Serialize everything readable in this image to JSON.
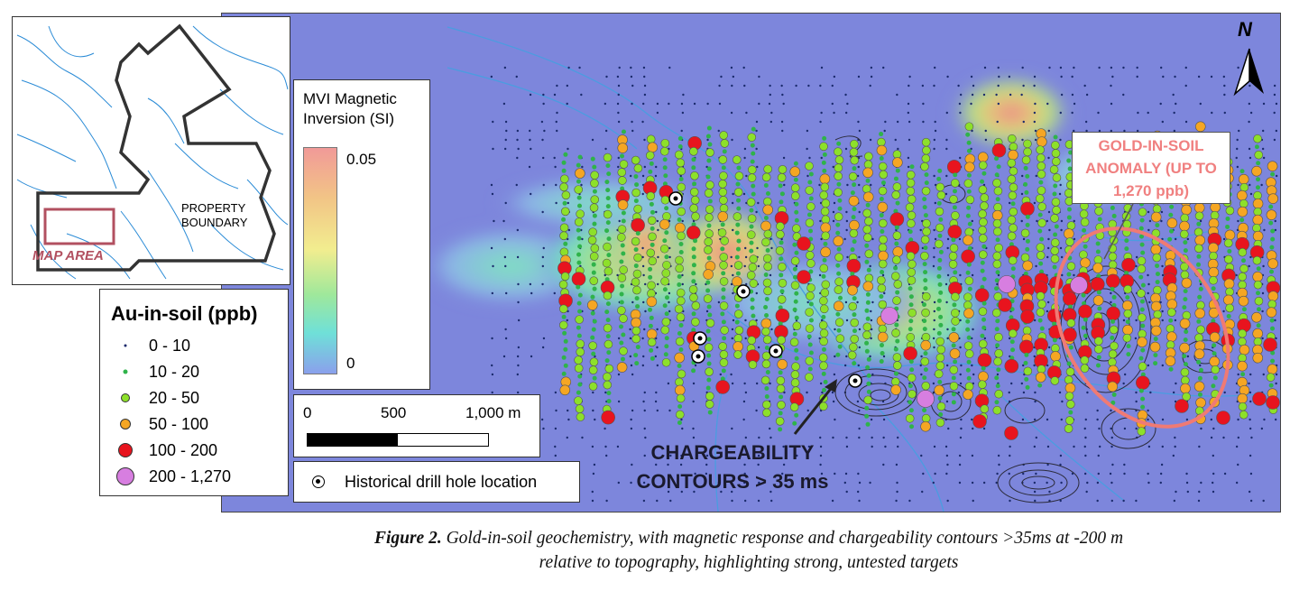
{
  "caption": {
    "figure_label": "Figure 2.",
    "line1": "Gold-in-soil geochemistry, with magnetic response and chargeability contours >35ms at -200 m",
    "line2": "relative to topography, highlighting strong, untested targets"
  },
  "inset": {
    "property_label_1": "PROPERTY",
    "property_label_2": "BOUNDARY",
    "map_area_label": "MAP AREA"
  },
  "au_legend": {
    "title": "Au-in-soil (ppb)",
    "classes": [
      {
        "label": "0 - 10",
        "color": "#1a2a6c"
      },
      {
        "label": "10 - 20",
        "color": "#2fb34a"
      },
      {
        "label": "20 - 50",
        "color": "#8de02a"
      },
      {
        "label": "50 - 100",
        "color": "#f5a623"
      },
      {
        "label": "100 - 200",
        "color": "#e8141e"
      },
      {
        "label": "200 - 1,270",
        "color": "#d77ee0"
      }
    ]
  },
  "magnetic_legend": {
    "title_line1": "MVI Magnetic",
    "title_line2": "Inversion (SI)",
    "max": "0.05",
    "min": "0"
  },
  "scale_bar": {
    "labels": [
      "0",
      "500",
      "1,000 m"
    ]
  },
  "drill_legend": {
    "label": "Historical drill hole location"
  },
  "annotations": {
    "anomaly_line1": "GOLD-IN-SOIL",
    "anomaly_line2": "ANOMALY (UP TO",
    "anomaly_line3": "1,270 ppb)",
    "chargeability_line1": "CHARGEABILITY",
    "chargeability_line2": "CONTOURS > 35 ms"
  },
  "north_arrow": {
    "label": "N"
  },
  "colors": {
    "map_background": "#7d86dc",
    "anomaly_outline": "#f07a74",
    "contour": "#2b2b3a"
  }
}
